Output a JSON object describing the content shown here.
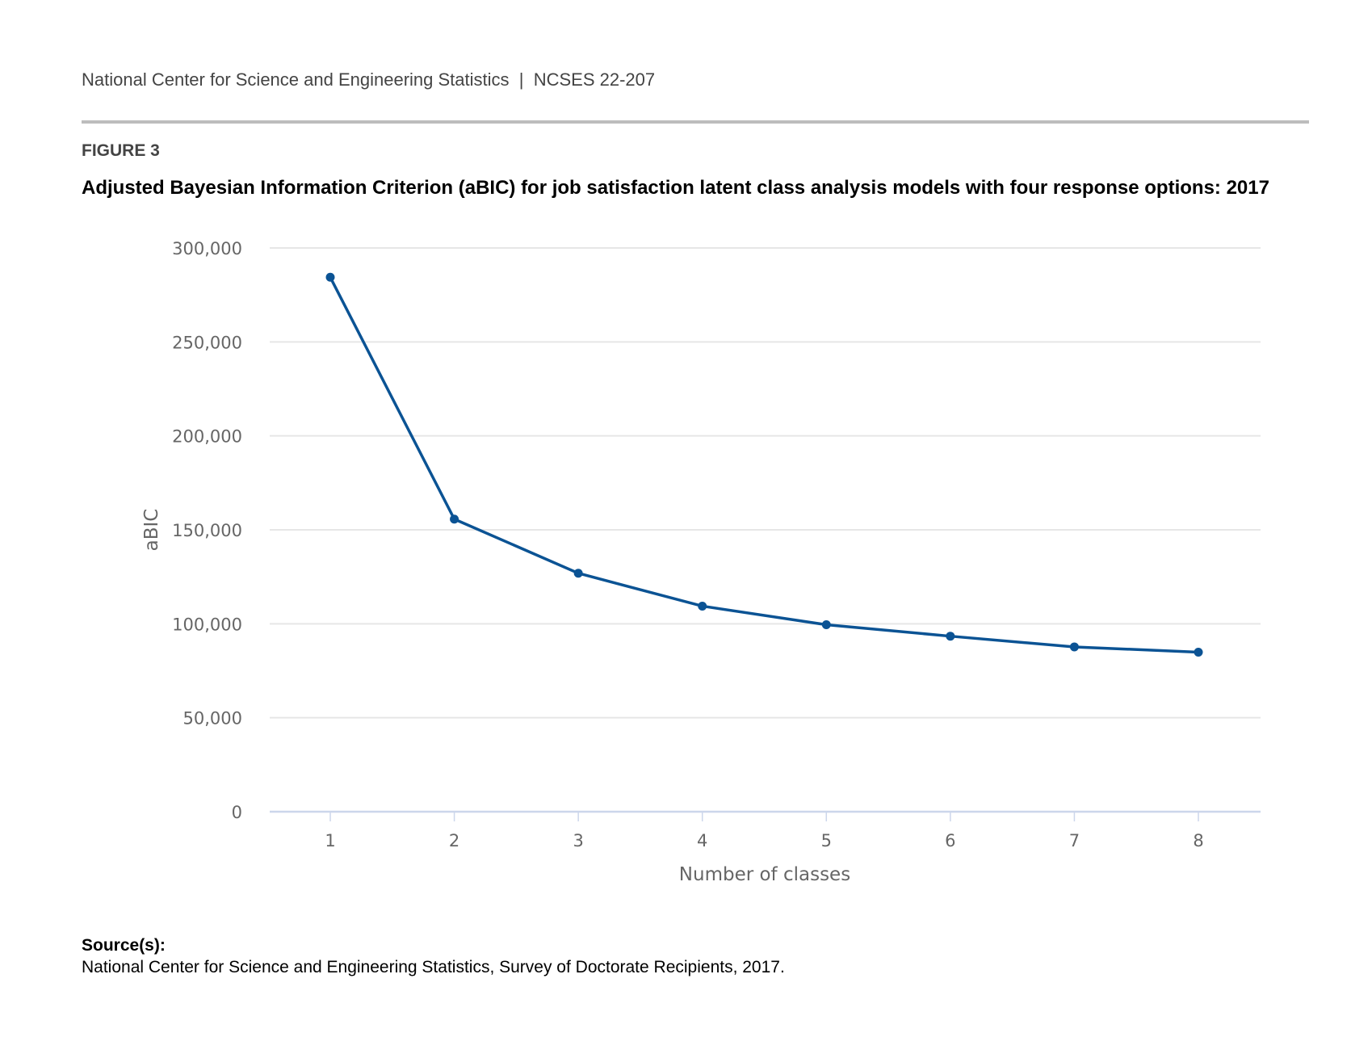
{
  "header": {
    "org": "National Center for Science and Engineering Statistics",
    "separator": "|",
    "report": "NCSES 22-207"
  },
  "figure_label": "FIGURE 3",
  "source": {
    "label": "Source(s):",
    "text": "National Center for Science and Engineering Statistics, Survey of Doctorate Recipients, 2017."
  },
  "colors": {
    "line": "#0b5394",
    "grid": "#e6e6e6",
    "axis": "#ccd6eb"
  },
  "chart_data": {
    "type": "line",
    "title": "Adjusted Bayesian Information Criterion (aBIC) for job satisfaction latent class analysis models with four response options: 2017",
    "xlabel": "Number of classes",
    "ylabel": "aBIC",
    "x": [
      1,
      2,
      3,
      4,
      5,
      6,
      7,
      8
    ],
    "x_tick_labels": [
      "1",
      "2",
      "3",
      "4",
      "5",
      "6",
      "7",
      "8"
    ],
    "y_ticks": [
      0,
      50000,
      100000,
      150000,
      200000,
      250000,
      300000
    ],
    "y_tick_labels": [
      "0",
      "50,000",
      "100,000",
      "150,000",
      "200,000",
      "250,000",
      "300,000"
    ],
    "ylim": [
      0,
      300000
    ],
    "grid": true,
    "series": [
      {
        "name": "aBIC",
        "values": [
          284400,
          155700,
          126900,
          109400,
          99500,
          93400,
          87700,
          84900
        ]
      }
    ]
  }
}
